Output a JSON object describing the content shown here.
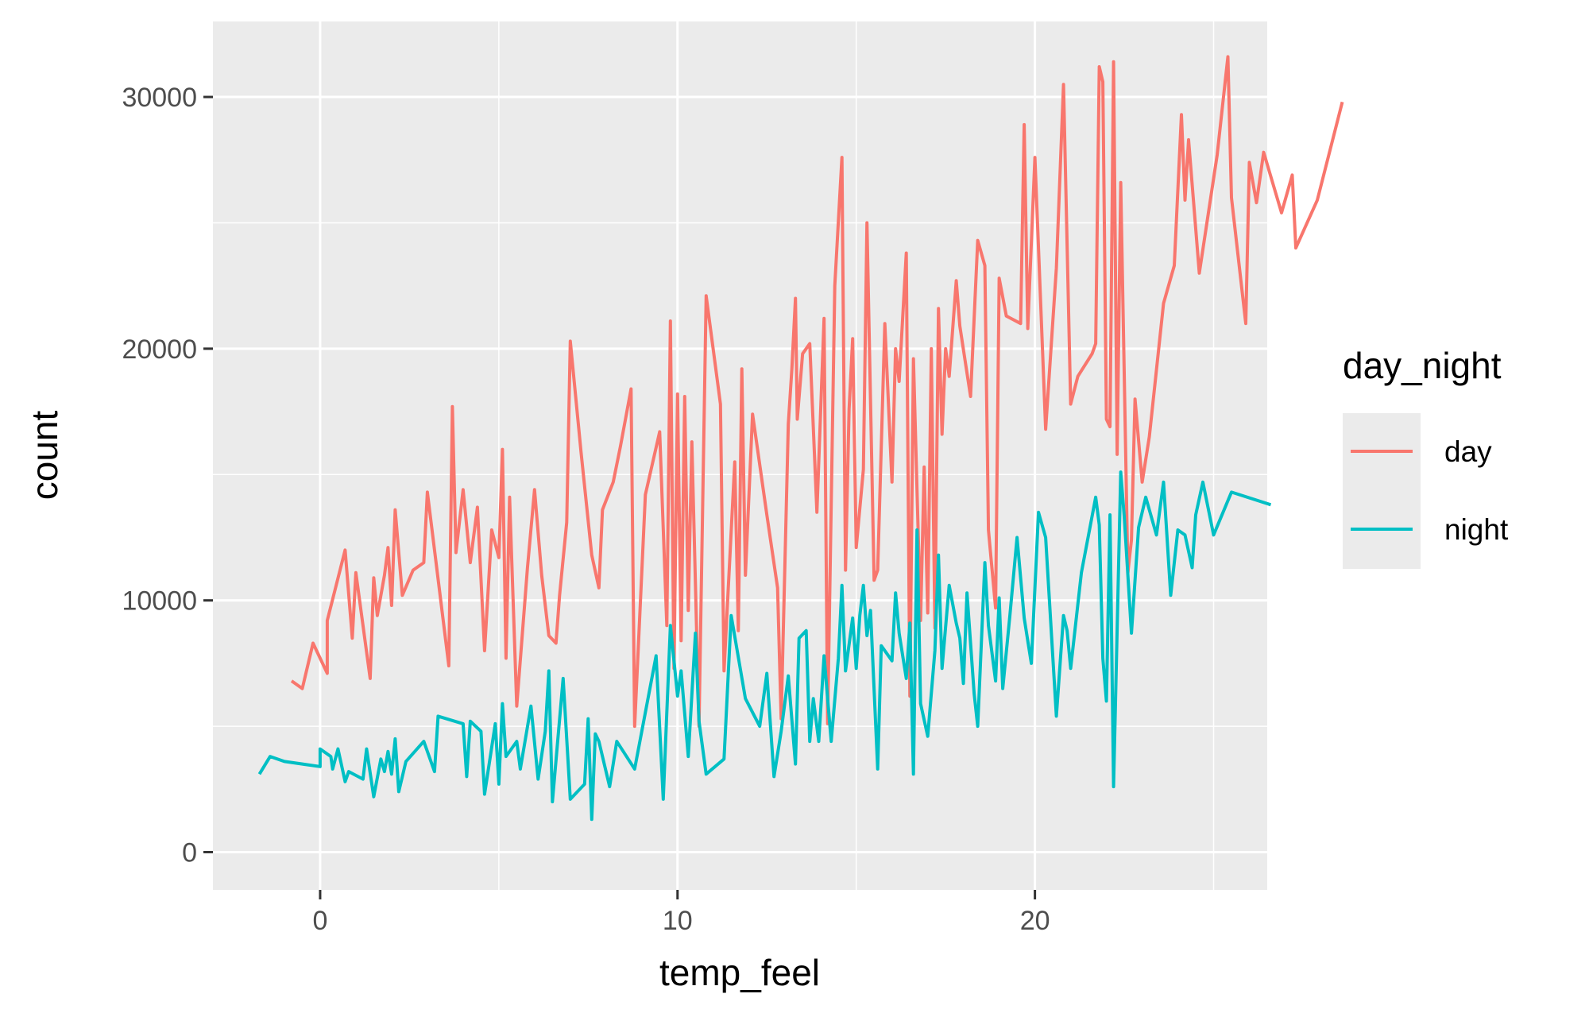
{
  "chart_data": {
    "type": "line",
    "xlabel": "temp_feel",
    "ylabel": "count",
    "xlim": [
      -3,
      26.5
    ],
    "ylim": [
      -1500,
      33000
    ],
    "x_ticks": [
      0,
      10,
      20
    ],
    "y_ticks": [
      0,
      10000,
      20000,
      30000
    ],
    "x_tick_labels": [
      "0",
      "10",
      "20"
    ],
    "y_tick_labels": [
      "0",
      "10000",
      "20000",
      "30000"
    ],
    "grid": true,
    "legend": {
      "title": "day_night",
      "position": "right"
    },
    "series": [
      {
        "name": "day",
        "color": "#F8766D",
        "points": [
          [
            -0.8,
            6800
          ],
          [
            -0.5,
            6500
          ],
          [
            -0.2,
            8300
          ],
          [
            0.2,
            7100
          ],
          [
            0.2,
            9200
          ],
          [
            0.7,
            12000
          ],
          [
            0.9,
            8500
          ],
          [
            1.0,
            11100
          ],
          [
            1.4,
            6900
          ],
          [
            1.5,
            10900
          ],
          [
            1.6,
            9400
          ],
          [
            1.8,
            11000
          ],
          [
            1.9,
            12100
          ],
          [
            2.0,
            9800
          ],
          [
            2.1,
            13600
          ],
          [
            2.3,
            10200
          ],
          [
            2.6,
            11200
          ],
          [
            2.9,
            11500
          ],
          [
            3.0,
            14300
          ],
          [
            3.6,
            7400
          ],
          [
            3.7,
            17700
          ],
          [
            3.8,
            11900
          ],
          [
            4.0,
            14400
          ],
          [
            4.2,
            11500
          ],
          [
            4.4,
            13700
          ],
          [
            4.6,
            8000
          ],
          [
            4.8,
            12800
          ],
          [
            5.0,
            11700
          ],
          [
            5.1,
            16000
          ],
          [
            5.2,
            7700
          ],
          [
            5.3,
            14100
          ],
          [
            5.5,
            5800
          ],
          [
            5.8,
            11300
          ],
          [
            6.0,
            14400
          ],
          [
            6.2,
            11000
          ],
          [
            6.4,
            8600
          ],
          [
            6.6,
            8300
          ],
          [
            6.7,
            10200
          ],
          [
            6.9,
            13100
          ],
          [
            7.0,
            20300
          ],
          [
            7.3,
            15900
          ],
          [
            7.6,
            11800
          ],
          [
            7.8,
            10500
          ],
          [
            7.9,
            13600
          ],
          [
            8.2,
            14700
          ],
          [
            8.4,
            16100
          ],
          [
            8.7,
            18400
          ],
          [
            8.8,
            5000
          ],
          [
            9.1,
            14200
          ],
          [
            9.5,
            16700
          ],
          [
            9.7,
            9000
          ],
          [
            9.8,
            21100
          ],
          [
            9.9,
            7300
          ],
          [
            10.0,
            18200
          ],
          [
            10.1,
            8400
          ],
          [
            10.2,
            18100
          ],
          [
            10.3,
            9600
          ],
          [
            10.4,
            16300
          ],
          [
            10.6,
            5000
          ],
          [
            10.8,
            22100
          ],
          [
            11.2,
            17800
          ],
          [
            11.3,
            7200
          ],
          [
            11.6,
            15500
          ],
          [
            11.7,
            8800
          ],
          [
            11.8,
            19200
          ],
          [
            11.9,
            11000
          ],
          [
            12.1,
            17400
          ],
          [
            12.5,
            13400
          ],
          [
            12.8,
            10500
          ],
          [
            12.9,
            5300
          ],
          [
            13.1,
            17000
          ],
          [
            13.2,
            19200
          ],
          [
            13.3,
            22000
          ],
          [
            13.35,
            17200
          ],
          [
            13.5,
            19800
          ],
          [
            13.7,
            20200
          ],
          [
            13.9,
            13500
          ],
          [
            14.1,
            21200
          ],
          [
            14.2,
            5100
          ],
          [
            14.4,
            22500
          ],
          [
            14.6,
            27600
          ],
          [
            14.7,
            11200
          ],
          [
            14.8,
            17600
          ],
          [
            14.9,
            20400
          ],
          [
            15.0,
            12100
          ],
          [
            15.2,
            15200
          ],
          [
            15.3,
            25000
          ],
          [
            15.5,
            10800
          ],
          [
            15.6,
            11200
          ],
          [
            15.8,
            21000
          ],
          [
            16.0,
            14700
          ],
          [
            16.1,
            20000
          ],
          [
            16.2,
            18700
          ],
          [
            16.4,
            23800
          ],
          [
            16.5,
            6200
          ],
          [
            16.6,
            19600
          ],
          [
            16.8,
            9200
          ],
          [
            16.9,
            15300
          ],
          [
            17.0,
            9500
          ],
          [
            17.1,
            20000
          ],
          [
            17.2,
            8900
          ],
          [
            17.3,
            21600
          ],
          [
            17.4,
            16600
          ],
          [
            17.5,
            20000
          ],
          [
            17.6,
            18900
          ],
          [
            17.8,
            22700
          ],
          [
            17.9,
            20900
          ],
          [
            18.2,
            18100
          ],
          [
            18.4,
            24300
          ],
          [
            18.6,
            23300
          ],
          [
            18.7,
            12800
          ],
          [
            18.9,
            9700
          ],
          [
            19.0,
            22800
          ],
          [
            19.2,
            21300
          ],
          [
            19.6,
            21000
          ],
          [
            19.7,
            28900
          ],
          [
            19.8,
            20800
          ],
          [
            20.0,
            27600
          ],
          [
            20.3,
            16800
          ],
          [
            20.6,
            23200
          ],
          [
            20.8,
            30500
          ],
          [
            21.0,
            17800
          ],
          [
            21.2,
            18900
          ],
          [
            21.6,
            19800
          ],
          [
            21.7,
            20200
          ],
          [
            21.8,
            31200
          ],
          [
            21.9,
            30600
          ],
          [
            22.0,
            17200
          ],
          [
            22.1,
            16900
          ],
          [
            22.2,
            31400
          ],
          [
            22.3,
            15800
          ],
          [
            22.4,
            26600
          ],
          [
            22.6,
            11100
          ],
          [
            22.7,
            12400
          ],
          [
            22.8,
            18000
          ],
          [
            23.0,
            14700
          ],
          [
            23.2,
            16500
          ],
          [
            23.6,
            21800
          ],
          [
            23.9,
            23300
          ],
          [
            24.1,
            29300
          ],
          [
            24.2,
            25900
          ],
          [
            24.3,
            28300
          ],
          [
            24.6,
            23000
          ],
          [
            25.1,
            27700
          ],
          [
            25.4,
            31600
          ],
          [
            25.5,
            26000
          ],
          [
            25.9,
            21000
          ],
          [
            26.0,
            27400
          ],
          [
            26.2,
            25800
          ],
          [
            26.4,
            27800
          ],
          [
            26.9,
            25400
          ],
          [
            27.2,
            26900
          ],
          [
            27.3,
            24000
          ],
          [
            27.9,
            25900
          ],
          [
            28.6,
            29800
          ]
        ]
      },
      {
        "name": "night",
        "color": "#00BFC4",
        "points": [
          [
            -1.7,
            3100
          ],
          [
            -1.4,
            3800
          ],
          [
            -1.0,
            3600
          ],
          [
            0.0,
            3400
          ],
          [
            0.0,
            4100
          ],
          [
            0.3,
            3800
          ],
          [
            0.35,
            3300
          ],
          [
            0.5,
            4100
          ],
          [
            0.7,
            2800
          ],
          [
            0.8,
            3200
          ],
          [
            1.2,
            2900
          ],
          [
            1.3,
            4100
          ],
          [
            1.5,
            2200
          ],
          [
            1.7,
            3700
          ],
          [
            1.8,
            3200
          ],
          [
            1.9,
            4000
          ],
          [
            2.0,
            3100
          ],
          [
            2.1,
            4500
          ],
          [
            2.2,
            2400
          ],
          [
            2.4,
            3600
          ],
          [
            2.9,
            4400
          ],
          [
            3.2,
            3200
          ],
          [
            3.3,
            5400
          ],
          [
            4.0,
            5100
          ],
          [
            4.1,
            3000
          ],
          [
            4.2,
            5200
          ],
          [
            4.5,
            4800
          ],
          [
            4.6,
            2300
          ],
          [
            4.9,
            5100
          ],
          [
            5.0,
            2700
          ],
          [
            5.1,
            5900
          ],
          [
            5.2,
            3800
          ],
          [
            5.5,
            4400
          ],
          [
            5.6,
            3300
          ],
          [
            5.9,
            5800
          ],
          [
            6.1,
            2900
          ],
          [
            6.3,
            4800
          ],
          [
            6.4,
            7200
          ],
          [
            6.5,
            2000
          ],
          [
            6.8,
            6900
          ],
          [
            7.0,
            2100
          ],
          [
            7.4,
            2700
          ],
          [
            7.5,
            5300
          ],
          [
            7.6,
            1300
          ],
          [
            7.7,
            4700
          ],
          [
            7.8,
            4400
          ],
          [
            8.1,
            2600
          ],
          [
            8.3,
            4400
          ],
          [
            8.8,
            3300
          ],
          [
            9.4,
            7800
          ],
          [
            9.6,
            2100
          ],
          [
            9.8,
            9000
          ],
          [
            10.0,
            6200
          ],
          [
            10.1,
            7200
          ],
          [
            10.3,
            3800
          ],
          [
            10.5,
            8700
          ],
          [
            10.6,
            5200
          ],
          [
            10.8,
            3100
          ],
          [
            11.3,
            3700
          ],
          [
            11.5,
            9400
          ],
          [
            11.9,
            6100
          ],
          [
            12.3,
            5000
          ],
          [
            12.5,
            7100
          ],
          [
            12.7,
            3000
          ],
          [
            12.9,
            4800
          ],
          [
            13.1,
            7000
          ],
          [
            13.3,
            3500
          ],
          [
            13.4,
            8500
          ],
          [
            13.6,
            8800
          ],
          [
            13.7,
            4400
          ],
          [
            13.8,
            6100
          ],
          [
            13.95,
            4400
          ],
          [
            14.1,
            7800
          ],
          [
            14.3,
            4400
          ],
          [
            14.5,
            7700
          ],
          [
            14.6,
            10600
          ],
          [
            14.7,
            7200
          ],
          [
            14.9,
            9300
          ],
          [
            15.0,
            7300
          ],
          [
            15.1,
            9400
          ],
          [
            15.2,
            10600
          ],
          [
            15.3,
            8600
          ],
          [
            15.4,
            9600
          ],
          [
            15.6,
            3300
          ],
          [
            15.7,
            8200
          ],
          [
            16.0,
            7600
          ],
          [
            16.1,
            10300
          ],
          [
            16.2,
            8700
          ],
          [
            16.4,
            6900
          ],
          [
            16.5,
            9100
          ],
          [
            16.6,
            3100
          ],
          [
            16.7,
            12800
          ],
          [
            16.8,
            5900
          ],
          [
            17.0,
            4600
          ],
          [
            17.2,
            8000
          ],
          [
            17.3,
            11800
          ],
          [
            17.4,
            7300
          ],
          [
            17.6,
            10600
          ],
          [
            17.8,
            9100
          ],
          [
            17.9,
            8500
          ],
          [
            18.0,
            6700
          ],
          [
            18.1,
            10300
          ],
          [
            18.3,
            6300
          ],
          [
            18.4,
            5000
          ],
          [
            18.6,
            11500
          ],
          [
            18.7,
            9000
          ],
          [
            18.9,
            6800
          ],
          [
            19.0,
            10100
          ],
          [
            19.1,
            6500
          ],
          [
            19.3,
            9400
          ],
          [
            19.5,
            12500
          ],
          [
            19.7,
            9300
          ],
          [
            19.8,
            8400
          ],
          [
            19.9,
            7500
          ],
          [
            20.1,
            13500
          ],
          [
            20.3,
            12500
          ],
          [
            20.6,
            5400
          ],
          [
            20.8,
            9400
          ],
          [
            20.9,
            8800
          ],
          [
            21.0,
            7300
          ],
          [
            21.3,
            11100
          ],
          [
            21.7,
            14100
          ],
          [
            21.8,
            13000
          ],
          [
            21.9,
            7700
          ],
          [
            22.0,
            6000
          ],
          [
            22.1,
            13400
          ],
          [
            22.2,
            2600
          ],
          [
            22.4,
            15100
          ],
          [
            22.5,
            13300
          ],
          [
            22.7,
            8700
          ],
          [
            22.9,
            12900
          ],
          [
            23.1,
            14100
          ],
          [
            23.4,
            12600
          ],
          [
            23.6,
            14700
          ],
          [
            23.8,
            10200
          ],
          [
            24.0,
            12800
          ],
          [
            24.2,
            12600
          ],
          [
            24.4,
            11300
          ],
          [
            24.5,
            13400
          ],
          [
            24.7,
            14700
          ],
          [
            25.0,
            12600
          ],
          [
            25.5,
            14300
          ],
          [
            26.6,
            13800
          ]
        ]
      }
    ]
  }
}
